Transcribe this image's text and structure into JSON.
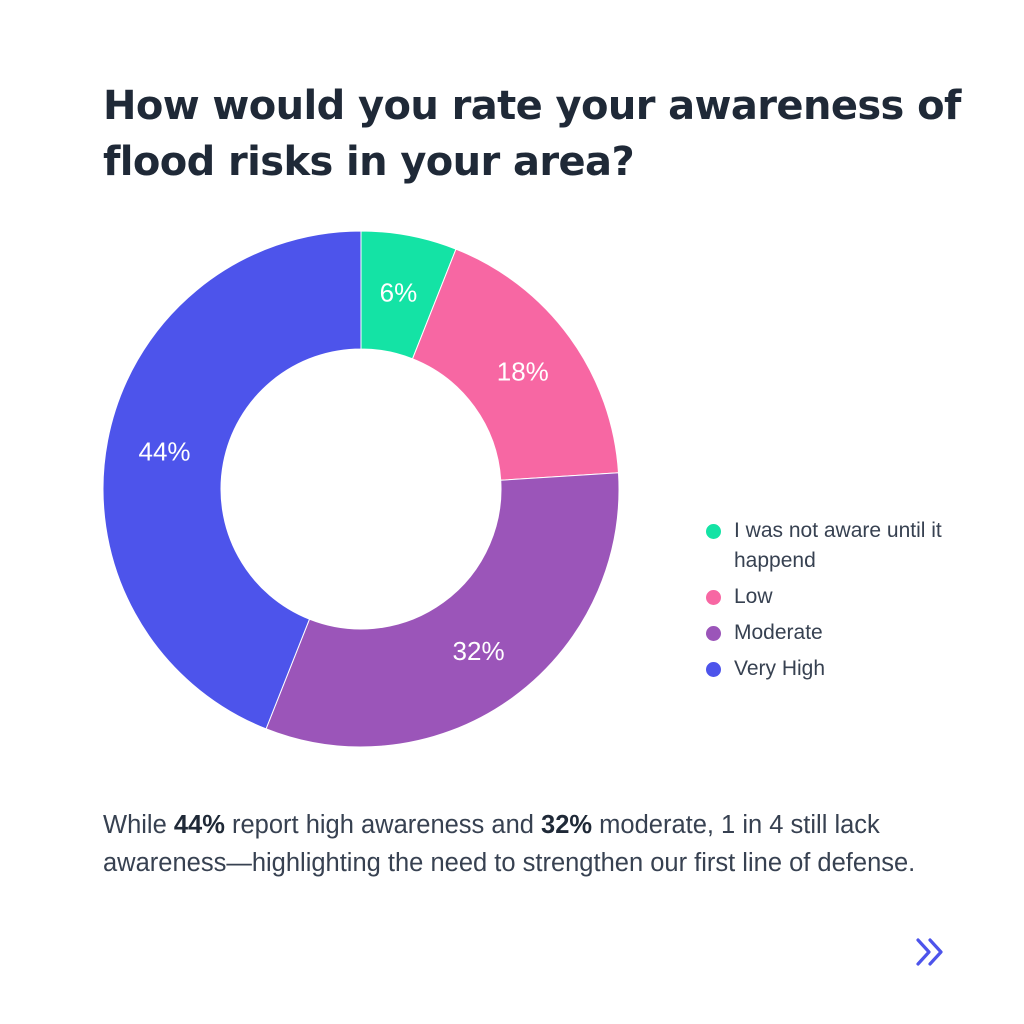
{
  "title": "How would you rate your awareness of flood risks in your area?",
  "chart_data": {
    "type": "pie",
    "variant": "donut",
    "slices": [
      {
        "label": "I was not aware until it happend",
        "value": 6,
        "display": "6%",
        "color": "#14e3a5"
      },
      {
        "label": "Low",
        "value": 18,
        "display": "18%",
        "color": "#f767a3"
      },
      {
        "label": "Moderate",
        "value": 32,
        "display": "32%",
        "color": "#9b55b9"
      },
      {
        "label": "Very High",
        "value": 44,
        "display": "44%",
        "color": "#4d54eb"
      }
    ],
    "legend_position": "right"
  },
  "legend": {
    "items": [
      {
        "label": "I was not aware until it happend",
        "color": "#14e3a5"
      },
      {
        "label": "Low",
        "color": "#f767a3"
      },
      {
        "label": "Moderate",
        "color": "#9b55b9"
      },
      {
        "label": "Very High",
        "color": "#4d54eb"
      }
    ]
  },
  "caption": {
    "p1": "While ",
    "b1": "44%",
    "p2": " report high awareness and ",
    "b2": "32%",
    "p3": " moderate, 1 in 4 still lack awareness—highlighting the need to strengthen our first line of defense."
  },
  "nav": {
    "next_icon": "double-chevron-right-icon",
    "accent_color": "#4d54eb"
  }
}
